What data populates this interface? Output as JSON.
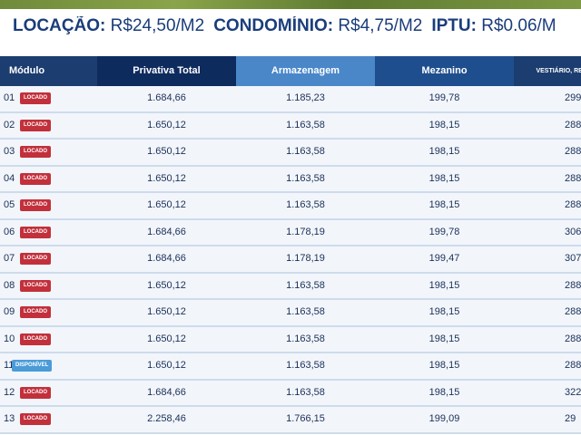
{
  "header": {
    "items": [
      {
        "label": "LOCAÇÃO:",
        "value": "R$24,50/M2"
      },
      {
        "label": "CONDOMÍNIO:",
        "value": "R$4,75/M2"
      },
      {
        "label": "IPTU:",
        "value": "R$0.06/M"
      }
    ]
  },
  "table": {
    "columns": [
      "Módulo",
      "Privativa Total",
      "Armazenagem",
      "Mezanino",
      "VESTIÁRIO, RECE"
    ],
    "rows": [
      {
        "module": "01",
        "status": "LOCADO",
        "cells": [
          "1.684,66",
          "1.185,23",
          "199,78",
          "299"
        ]
      },
      {
        "module": "02",
        "status": "LOCADO",
        "cells": [
          "1.650,12",
          "1.163,58",
          "198,15",
          "288"
        ]
      },
      {
        "module": "03",
        "status": "LOCADO",
        "cells": [
          "1.650,12",
          "1.163,58",
          "198,15",
          "288"
        ]
      },
      {
        "module": "04",
        "status": "LOCADO",
        "cells": [
          "1.650,12",
          "1.163,58",
          "198,15",
          "288"
        ]
      },
      {
        "module": "05",
        "status": "LOCADO",
        "cells": [
          "1.650,12",
          "1.163,58",
          "198,15",
          "288"
        ]
      },
      {
        "module": "06",
        "status": "LOCADO",
        "cells": [
          "1.684,66",
          "1.178,19",
          "199,78",
          "306"
        ]
      },
      {
        "module": "07",
        "status": "LOCADO",
        "cells": [
          "1.684,66",
          "1.178,19",
          "199,47",
          "307"
        ]
      },
      {
        "module": "08",
        "status": "LOCADO",
        "cells": [
          "1.650,12",
          "1.163,58",
          "198,15",
          "288"
        ]
      },
      {
        "module": "09",
        "status": "LOCADO",
        "cells": [
          "1.650,12",
          "1.163,58",
          "198,15",
          "288"
        ]
      },
      {
        "module": "10",
        "status": "LOCADO",
        "cells": [
          "1.650,12",
          "1.163,58",
          "198,15",
          "288"
        ]
      },
      {
        "module": "11",
        "status": "DISPONÍVEL",
        "cells": [
          "1.650,12",
          "1.163,58",
          "198,15",
          "288"
        ]
      },
      {
        "module": "12",
        "status": "LOCADO",
        "cells": [
          "1.684,66",
          "1.163,58",
          "198,15",
          "322"
        ]
      },
      {
        "module": "13",
        "status": "LOCADO",
        "cells": [
          "2.258,46",
          "1.766,15",
          "199,09",
          "29"
        ]
      }
    ]
  }
}
